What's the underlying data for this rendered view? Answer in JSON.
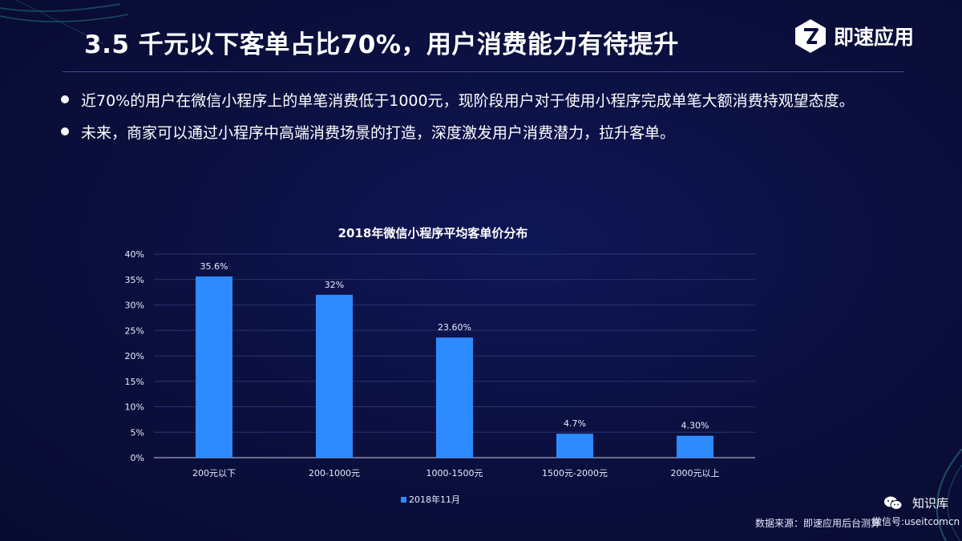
{
  "slide": {
    "title": "3.5 千元以下客单占比70%，用户消费能力有待提升",
    "logo_text": "即速应用",
    "bullets": [
      "近70%的用户在微信小程序上的单笔消费低于1000元，现阶段用户对于使用小程序完成单笔大额消费持观望态度。",
      "未来，商家可以通过小程序中高端消费场景的打造，深度激发用户消费潜力，拉升客单。"
    ],
    "source": "数据来源：即速应用后台测算",
    "watermark": {
      "title": "知识库",
      "subtitle": "微信号:useitcomcn"
    }
  },
  "colors": {
    "background": "#0b0f3d",
    "bar": "#2e8bff",
    "accent": "#ffffff"
  },
  "chart_data": {
    "type": "bar",
    "title": "2018年微信小程序平均客单价分布",
    "categories": [
      "200元以下",
      "200-1000元",
      "1000-1500元",
      "1500元-2000元",
      "2000元以上"
    ],
    "series": [
      {
        "name": "2018年11月",
        "values": [
          35.6,
          32,
          23.6,
          4.7,
          4.3
        ],
        "labels": [
          "35.6%",
          "32%",
          "23.60%",
          "4.7%",
          "4.30%"
        ]
      }
    ],
    "y_ticks": [
      "0%",
      "5%",
      "10%",
      "15%",
      "20%",
      "25%",
      "30%",
      "35%",
      "40%"
    ],
    "ylim": [
      0,
      40
    ],
    "grid": true,
    "legend": "bottom"
  }
}
